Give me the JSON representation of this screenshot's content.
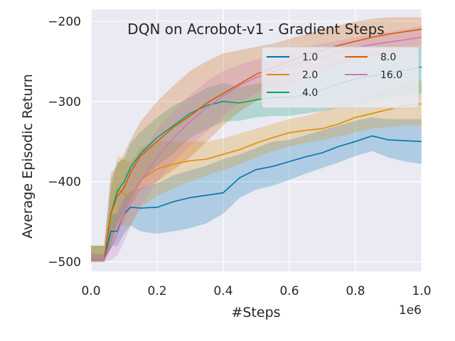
{
  "chart_data": {
    "type": "line",
    "title": "DQN on Acrobot-v1 - Gradient Steps",
    "xlabel": "#Steps",
    "ylabel": "Average Episodic Return",
    "x_offset_label": "1e6",
    "xlim": [
      0,
      1.0
    ],
    "ylim": [
      -512,
      -185
    ],
    "grid": true,
    "legend_position": "top-right",
    "x_ticks": [
      0.0,
      0.2,
      0.4,
      0.6,
      0.8,
      1.0
    ],
    "x_tick_labels": [
      "0.0",
      "0.2",
      "0.4",
      "0.6",
      "0.8",
      "1.0"
    ],
    "y_ticks": [
      -200,
      -300,
      -400,
      -500
    ],
    "y_tick_labels": [
      "−200",
      "−300",
      "−400",
      "−500"
    ],
    "x": [
      0.0,
      0.04,
      0.06,
      0.08,
      0.1,
      0.12,
      0.15,
      0.2,
      0.25,
      0.3,
      0.35,
      0.4,
      0.45,
      0.5,
      0.55,
      0.6,
      0.65,
      0.7,
      0.75,
      0.8,
      0.85,
      0.9,
      0.95,
      1.0
    ],
    "series": [
      {
        "name": "1.0",
        "color": "#0173b2",
        "values": [
          -497,
          -497,
          -462,
          -462,
          -440,
          -432,
          -433,
          -432,
          -425,
          -420,
          -417,
          -414,
          -395,
          -385,
          -381,
          -375,
          -369,
          -364,
          -356,
          -350,
          -343,
          -348,
          -349,
          -350
        ],
        "lower": [
          -500,
          -500,
          -480,
          -480,
          -465,
          -455,
          -462,
          -465,
          -462,
          -458,
          -452,
          -440,
          -420,
          -410,
          -405,
          -398,
          -390,
          -383,
          -376,
          -368,
          -362,
          -370,
          -375,
          -378
        ],
        "upper": [
          -490,
          -490,
          -440,
          -440,
          -420,
          -412,
          -408,
          -402,
          -392,
          -386,
          -380,
          -372,
          -366,
          -358,
          -350,
          -348,
          -342,
          -336,
          -330,
          -324,
          -320,
          -322,
          -322,
          -322
        ]
      },
      {
        "name": "2.0",
        "color": "#de8f05",
        "values": [
          -497,
          -497,
          -442,
          -410,
          -415,
          -420,
          -398,
          -384,
          -378,
          -374,
          -372,
          -366,
          -360,
          -352,
          -345,
          -339,
          -336,
          -334,
          -328,
          -320,
          -315,
          -310,
          -305,
          -303
        ],
        "lower": [
          -500,
          -500,
          -480,
          -455,
          -455,
          -455,
          -432,
          -418,
          -408,
          -400,
          -392,
          -386,
          -378,
          -370,
          -362,
          -356,
          -352,
          -348,
          -344,
          -338,
          -334,
          -332,
          -330,
          -330
        ],
        "upper": [
          -480,
          -480,
          -412,
          -368,
          -372,
          -376,
          -358,
          -350,
          -350,
          -350,
          -350,
          -346,
          -340,
          -334,
          -328,
          -322,
          -318,
          -312,
          -304,
          -298,
          -292,
          -284,
          -278,
          -274
        ]
      },
      {
        "name": "4.0",
        "color": "#029e73",
        "values": [
          -497,
          -497,
          -440,
          -412,
          -400,
          -382,
          -365,
          -345,
          -330,
          -315,
          -305,
          -300,
          -302,
          -298,
          -295,
          -295,
          -292,
          -285,
          -278,
          -272,
          -268,
          -265,
          -261,
          -257
        ],
        "lower": [
          -500,
          -500,
          -480,
          -450,
          -440,
          -420,
          -400,
          -380,
          -365,
          -345,
          -335,
          -325,
          -324,
          -320,
          -318,
          -318,
          -315,
          -312,
          -308,
          -304,
          -300,
          -295,
          -292,
          -290
        ],
        "upper": [
          -480,
          -480,
          -400,
          -376,
          -372,
          -352,
          -338,
          -320,
          -305,
          -295,
          -283,
          -277,
          -282,
          -278,
          -274,
          -272,
          -268,
          -260,
          -250,
          -243,
          -240,
          -238,
          -235,
          -232
        ]
      },
      {
        "name": "8.0",
        "color": "#d55e00",
        "values": [
          -497,
          -497,
          -440,
          -418,
          -408,
          -388,
          -368,
          -350,
          -332,
          -318,
          -302,
          -290,
          -278,
          -266,
          -258,
          -250,
          -242,
          -236,
          -230,
          -225,
          -220,
          -216,
          -213,
          -210
        ],
        "lower": [
          -500,
          -500,
          -480,
          -460,
          -450,
          -430,
          -410,
          -400,
          -385,
          -370,
          -350,
          -330,
          -312,
          -300,
          -290,
          -282,
          -270,
          -262,
          -255,
          -250,
          -245,
          -240,
          -236,
          -232
        ],
        "upper": [
          -480,
          -480,
          -390,
          -380,
          -365,
          -348,
          -325,
          -300,
          -280,
          -262,
          -250,
          -240,
          -236,
          -232,
          -228,
          -222,
          -216,
          -210,
          -205,
          -200,
          -197,
          -195,
          -195,
          -195
        ]
      },
      {
        "name": "16.0",
        "color": "#cc78bc",
        "values": [
          -497,
          -497,
          -482,
          -465,
          -440,
          -420,
          -400,
          -370,
          -345,
          -325,
          -308,
          -293,
          -280,
          -270,
          -263,
          -256,
          -250,
          -245,
          -238,
          -233,
          -229,
          -226,
          -223,
          -220
        ],
        "lower": [
          -500,
          -500,
          -498,
          -492,
          -475,
          -455,
          -430,
          -400,
          -375,
          -355,
          -338,
          -318,
          -302,
          -290,
          -280,
          -272,
          -265,
          -258,
          -252,
          -247,
          -242,
          -238,
          -234,
          -230
        ],
        "upper": [
          -490,
          -490,
          -460,
          -430,
          -400,
          -385,
          -365,
          -335,
          -312,
          -292,
          -275,
          -262,
          -254,
          -248,
          -242,
          -237,
          -232,
          -228,
          -224,
          -220,
          -216,
          -213,
          -210,
          -206
        ]
      }
    ]
  }
}
